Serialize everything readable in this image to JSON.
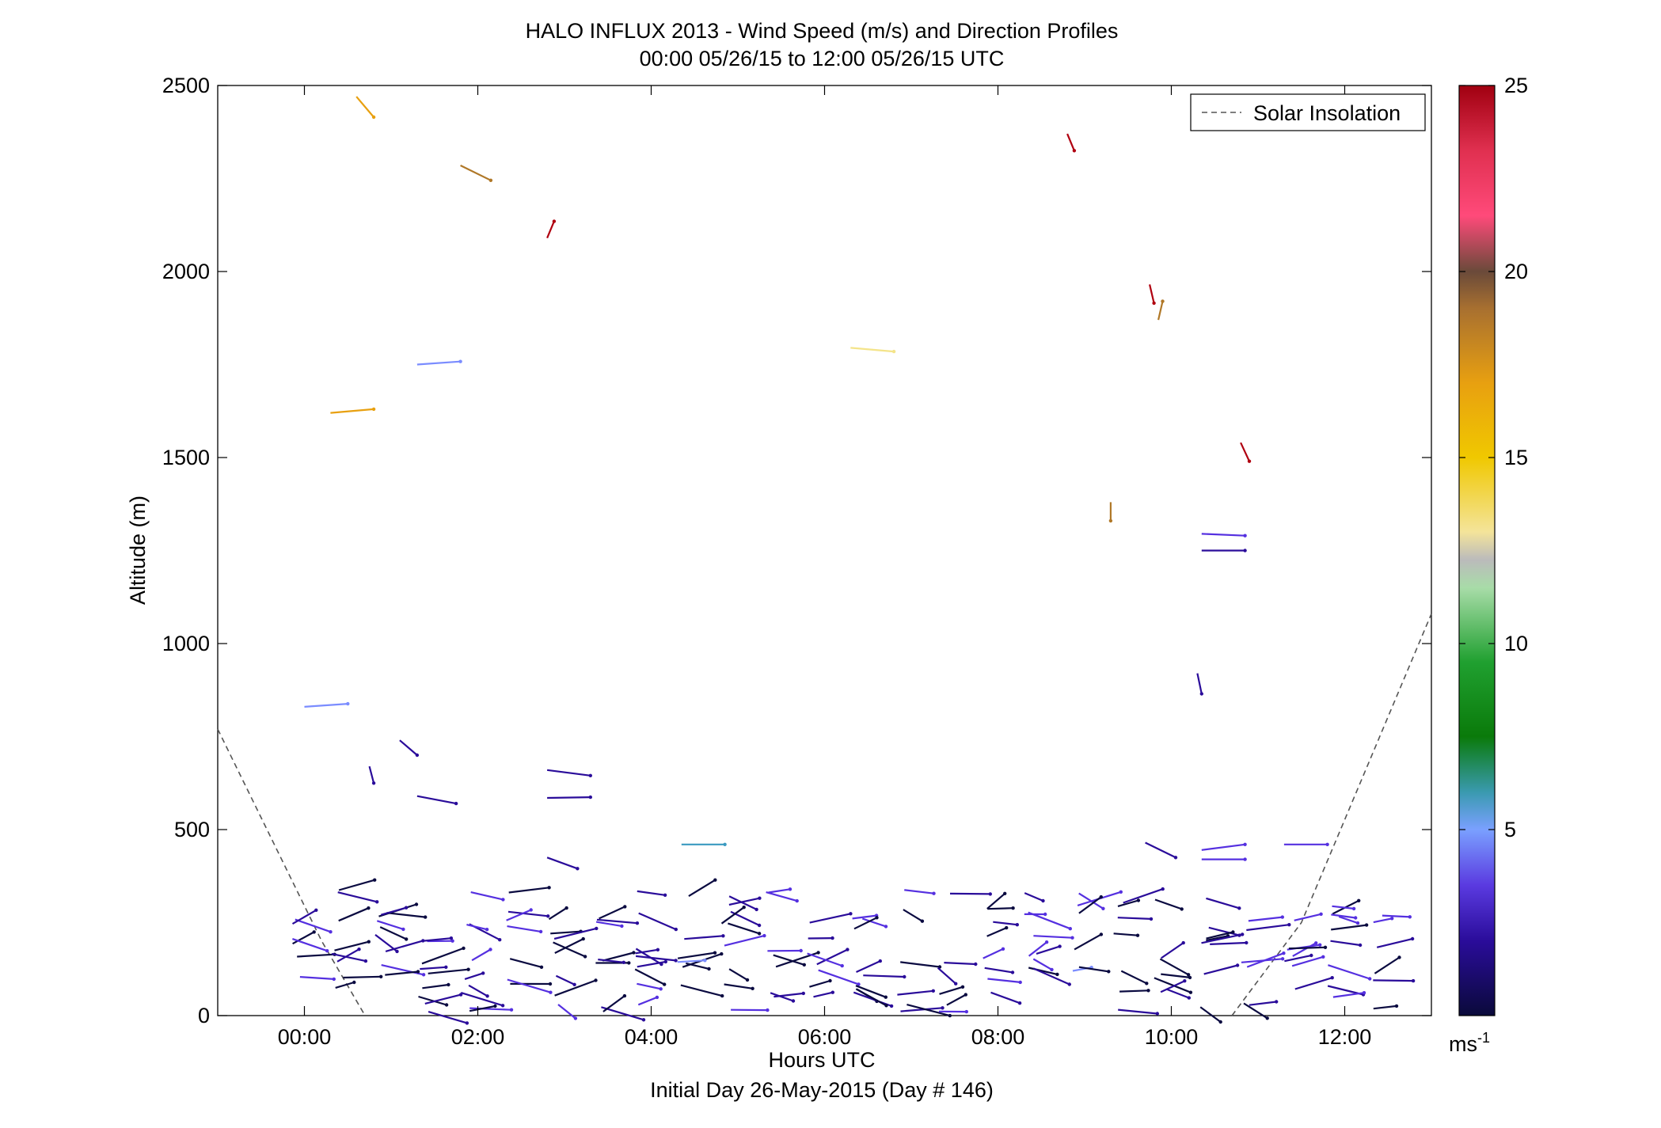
{
  "title_line1": "HALO INFLUX 2013 - Wind Speed (m/s) and Direction Profiles",
  "title_line2": "00:00 05/26/15 to 12:00 05/26/15  UTC",
  "xlabel": "Hours UTC",
  "ylabel": "Altitude (m)",
  "footer": "Initial Day 26-May-2015 (Day # 146)",
  "legend_label": "Solar Insolation",
  "colorbar_unit": "ms",
  "colorbar_unit_exp": "-1",
  "colorbar_ticks": [
    "25",
    "20",
    "15",
    "10",
    "5"
  ],
  "colors": {
    "solar_line": "#555555",
    "colormap": [
      "#0a0a40",
      "#2a0c9a",
      "#5530e0",
      "#7a8cff",
      "#3a9ac0",
      "#0a7a0a",
      "#1aa02a",
      "#9ad69a",
      "#bbbbbb",
      "#f4e48a",
      "#f0c800",
      "#e8a010",
      "#b07828",
      "#7a4a3a",
      "#d04060",
      "#ff4a7a",
      "#b00010"
    ]
  },
  "chart_data": {
    "type": "wind_barb_profile",
    "title": "HALO INFLUX 2013 - Wind Speed (m/s) and Direction Profiles",
    "subtitle": "00:00 05/26/15 to 12:00 05/26/15  UTC",
    "xlabel": "Hours UTC",
    "ylabel": "Altitude (m)",
    "x_ticks": [
      "00:00",
      "02:00",
      "04:00",
      "06:00",
      "08:00",
      "10:00",
      "12:00"
    ],
    "x_tick_hours": [
      0,
      2,
      4,
      6,
      8,
      10,
      12
    ],
    "xlim_hours": [
      -1,
      13
    ],
    "y_ticks": [
      "0",
      "500",
      "1000",
      "1500",
      "2000",
      "2500"
    ],
    "ylim": [
      0,
      2500
    ],
    "colorbar": {
      "label": "ms-1",
      "range": [
        0,
        25
      ],
      "ticks": [
        5,
        10,
        15,
        20,
        25
      ]
    },
    "legend": {
      "entries": [
        "Solar Insolation"
      ],
      "position": "top-right"
    },
    "solar_insolation_curve": [
      [
        -1,
        770
      ],
      [
        0.2,
        200
      ],
      [
        0.7,
        0
      ]
    ],
    "solar_insolation_curve_2": [
      [
        10.7,
        0
      ],
      [
        11.5,
        250
      ],
      [
        13,
        1080
      ]
    ],
    "vectors": [
      {
        "t": 0.6,
        "alt": 2470,
        "dt": 0.2,
        "dalt": -55,
        "speed": 17
      },
      {
        "t": 1.8,
        "alt": 2285,
        "dt": 0.35,
        "dalt": -40,
        "speed": 18
      },
      {
        "t": 2.8,
        "alt": 2090,
        "dt": 0.08,
        "dalt": 45,
        "speed": 25
      },
      {
        "t": 0.3,
        "alt": 1620,
        "dt": 0.5,
        "dalt": 10,
        "speed": 17
      },
      {
        "t": 1.3,
        "alt": 1750,
        "dt": 0.5,
        "dalt": 8,
        "speed": 5
      },
      {
        "t": 0.0,
        "alt": 830,
        "dt": 0.5,
        "dalt": 8,
        "speed": 4
      },
      {
        "t": 0.75,
        "alt": 670,
        "dt": 0.05,
        "dalt": -45,
        "speed": 1
      },
      {
        "t": 1.1,
        "alt": 740,
        "dt": 0.2,
        "dalt": -40,
        "speed": 1
      },
      {
        "t": 1.3,
        "alt": 590,
        "dt": 0.45,
        "dalt": -20,
        "speed": 1
      },
      {
        "t": 2.8,
        "alt": 660,
        "dt": 0.5,
        "dalt": -15,
        "speed": 2
      },
      {
        "t": 2.8,
        "alt": 585,
        "dt": 0.5,
        "dalt": 2,
        "speed": 2
      },
      {
        "t": 2.8,
        "alt": 425,
        "dt": 0.35,
        "dalt": -30,
        "speed": 1
      },
      {
        "t": 4.35,
        "alt": 460,
        "dt": 0.5,
        "dalt": 0,
        "speed": 6
      },
      {
        "t": 6.3,
        "alt": 1795,
        "dt": 0.5,
        "dalt": -10,
        "speed": 14
      },
      {
        "t": 8.8,
        "alt": 2370,
        "dt": 0.08,
        "dalt": -45,
        "speed": 25
      },
      {
        "t": 9.75,
        "alt": 1965,
        "dt": 0.05,
        "dalt": -50,
        "speed": 25
      },
      {
        "t": 9.85,
        "alt": 1870,
        "dt": 0.05,
        "dalt": 50,
        "speed": 19
      },
      {
        "t": 9.3,
        "alt": 1380,
        "dt": 0.0,
        "dalt": -50,
        "speed": 19
      },
      {
        "t": 10.8,
        "alt": 1540,
        "dt": 0.1,
        "dalt": -50,
        "speed": 25
      },
      {
        "t": 10.35,
        "alt": 1295,
        "dt": 0.5,
        "dalt": -5,
        "speed": 3
      },
      {
        "t": 10.35,
        "alt": 1250,
        "dt": 0.5,
        "dalt": 0,
        "speed": 1
      },
      {
        "t": 10.3,
        "alt": 920,
        "dt": 0.05,
        "dalt": -55,
        "speed": 1
      },
      {
        "t": 9.7,
        "alt": 465,
        "dt": 0.35,
        "dalt": -40,
        "speed": 1
      },
      {
        "t": 10.35,
        "alt": 445,
        "dt": 0.5,
        "dalt": 15,
        "speed": 3
      },
      {
        "t": 10.35,
        "alt": 420,
        "dt": 0.5,
        "dalt": 0,
        "speed": 3
      },
      {
        "t": 11.3,
        "alt": 460,
        "dt": 0.5,
        "dalt": 0,
        "speed": 3
      }
    ],
    "lowlevel_note": "dense field of short low-speed (0-4 m/s) vectors between 0 and 450 m altitude across all hours"
  }
}
